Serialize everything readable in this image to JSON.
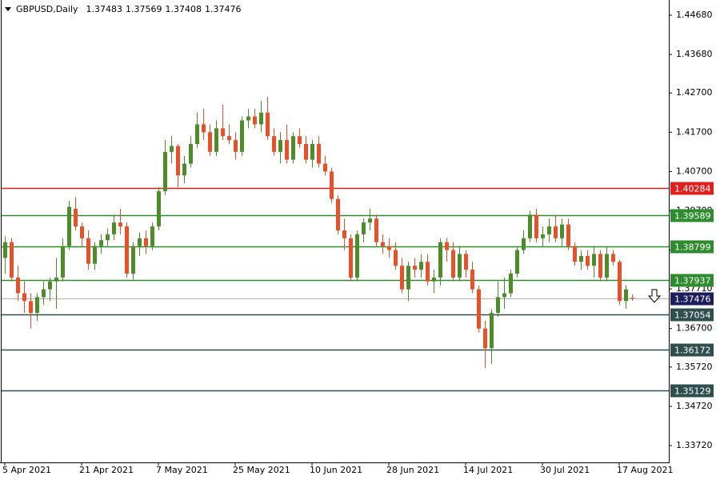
{
  "chart_data": {
    "type": "candlestick",
    "symbol": "GBPUSD,Daily",
    "up_color": "#4e8c2a",
    "down_color": "#e8502a",
    "current_line_color": "#b0b0b0",
    "current_box_color": "#1c1f5c",
    "ylim": [
      1.33292,
      1.45067
    ],
    "yticks": [
      {
        "value": 1.4468,
        "label": "1.44680"
      },
      {
        "value": 1.4368,
        "label": "1.43680"
      },
      {
        "value": 1.427,
        "label": "1.42700"
      },
      {
        "value": 1.417,
        "label": "1.41700"
      },
      {
        "value": 1.407,
        "label": "1.40700"
      },
      {
        "value": 1.397,
        "label": "1.39700"
      },
      {
        "value": 1.387,
        "label": "1.38700"
      },
      {
        "value": 1.3771,
        "label": "1.37710"
      },
      {
        "value": 1.367,
        "label": "1.36700"
      },
      {
        "value": 1.3572,
        "label": "1.35720"
      },
      {
        "value": 1.3472,
        "label": "1.34720"
      },
      {
        "value": 1.3372,
        "label": "1.33720"
      }
    ],
    "levels": [
      {
        "value": 1.40284,
        "color": "#e0201c"
      },
      {
        "value": 1.39589,
        "color": "#2e8b2e"
      },
      {
        "value": 1.38799,
        "color": "#2e8b2e"
      },
      {
        "value": 1.37937,
        "color": "#2e8b2e"
      },
      {
        "value": 1.37054,
        "color": "#2f4f4f"
      },
      {
        "value": 1.36172,
        "color": "#2f4f4f"
      },
      {
        "value": 1.35129,
        "color": "#2f4f4f"
      }
    ],
    "categories": [
      "5 Apr 2021",
      null,
      null,
      null,
      null,
      null,
      null,
      null,
      null,
      null,
      null,
      null,
      "21 Apr 2021",
      null,
      null,
      null,
      null,
      null,
      null,
      null,
      null,
      null,
      null,
      null,
      "7 May 2021",
      null,
      null,
      null,
      null,
      null,
      null,
      null,
      null,
      null,
      null,
      null,
      "25 May 2021",
      null,
      null,
      null,
      null,
      null,
      null,
      null,
      null,
      null,
      null,
      null,
      "10 Jun 2021",
      null,
      null,
      null,
      null,
      null,
      null,
      null,
      null,
      null,
      null,
      null,
      "28 Jun 2021",
      null,
      null,
      null,
      null,
      null,
      null,
      null,
      null,
      null,
      null,
      null,
      "14 Jul 2021",
      null,
      null,
      null,
      null,
      null,
      null,
      null,
      null,
      null,
      null,
      null,
      "30 Jul 2021",
      null,
      null,
      null,
      null,
      null,
      null,
      null,
      null,
      null,
      null,
      null,
      "17 Aug 2021",
      null,
      null
    ],
    "candles": [
      [
        1.385,
        1.3905,
        1.381,
        1.389
      ],
      [
        1.389,
        1.39,
        1.379,
        1.38
      ],
      [
        1.38,
        1.383,
        1.374,
        1.376
      ],
      [
        1.376,
        1.379,
        1.371,
        1.374
      ],
      [
        1.374,
        1.376,
        1.367,
        1.371
      ],
      [
        1.371,
        1.376,
        1.369,
        1.375
      ],
      [
        1.375,
        1.379,
        1.373,
        1.377
      ],
      [
        1.377,
        1.38,
        1.374,
        1.379
      ],
      [
        1.379,
        1.385,
        1.372,
        1.38
      ],
      [
        1.38,
        1.39,
        1.379,
        1.388
      ],
      [
        1.388,
        1.3995,
        1.387,
        1.398
      ],
      [
        1.3975,
        1.4005,
        1.392,
        1.393
      ],
      [
        1.393,
        1.394,
        1.388,
        1.39
      ],
      [
        1.39,
        1.392,
        1.382,
        1.3835
      ],
      [
        1.3835,
        1.389,
        1.382,
        1.388
      ],
      [
        1.388,
        1.391,
        1.386,
        1.3895
      ],
      [
        1.3895,
        1.3925,
        1.388,
        1.391
      ],
      [
        1.391,
        1.396,
        1.3895,
        1.394
      ],
      [
        1.394,
        1.3975,
        1.391,
        1.393
      ],
      [
        1.393,
        1.394,
        1.38,
        1.381
      ],
      [
        1.381,
        1.389,
        1.3795,
        1.388
      ],
      [
        1.388,
        1.3915,
        1.3855,
        1.39
      ],
      [
        1.39,
        1.392,
        1.386,
        1.388
      ],
      [
        1.388,
        1.394,
        1.387,
        1.393
      ],
      [
        1.393,
        1.403,
        1.392,
        1.402
      ],
      [
        1.402,
        1.415,
        1.401,
        1.412
      ],
      [
        1.412,
        1.416,
        1.409,
        1.4135
      ],
      [
        1.4135,
        1.414,
        1.403,
        1.406
      ],
      [
        1.406,
        1.411,
        1.404,
        1.409
      ],
      [
        1.409,
        1.416,
        1.408,
        1.414
      ],
      [
        1.414,
        1.422,
        1.413,
        1.419
      ],
      [
        1.419,
        1.423,
        1.415,
        1.417
      ],
      [
        1.417,
        1.419,
        1.411,
        1.412
      ],
      [
        1.412,
        1.42,
        1.411,
        1.418
      ],
      [
        1.418,
        1.424,
        1.415,
        1.416
      ],
      [
        1.416,
        1.419,
        1.414,
        1.415
      ],
      [
        1.415,
        1.417,
        1.41,
        1.412
      ],
      [
        1.412,
        1.421,
        1.411,
        1.42
      ],
      [
        1.42,
        1.423,
        1.418,
        1.421
      ],
      [
        1.421,
        1.423,
        1.418,
        1.419
      ],
      [
        1.419,
        1.425,
        1.417,
        1.422
      ],
      [
        1.422,
        1.426,
        1.415,
        1.416
      ],
      [
        1.416,
        1.418,
        1.411,
        1.412
      ],
      [
        1.412,
        1.417,
        1.409,
        1.415
      ],
      [
        1.415,
        1.419,
        1.409,
        1.41
      ],
      [
        1.41,
        1.417,
        1.409,
        1.416
      ],
      [
        1.416,
        1.418,
        1.413,
        1.414
      ],
      [
        1.414,
        1.416,
        1.409,
        1.41
      ],
      [
        1.41,
        1.415,
        1.408,
        1.414
      ],
      [
        1.414,
        1.416,
        1.408,
        1.409
      ],
      [
        1.409,
        1.411,
        1.406,
        1.407
      ],
      [
        1.407,
        1.408,
        1.399,
        1.4
      ],
      [
        1.4,
        1.401,
        1.391,
        1.392
      ],
      [
        1.392,
        1.395,
        1.387,
        1.39
      ],
      [
        1.39,
        1.391,
        1.379,
        1.38
      ],
      [
        1.38,
        1.392,
        1.379,
        1.391
      ],
      [
        1.391,
        1.395,
        1.389,
        1.394
      ],
      [
        1.394,
        1.3975,
        1.392,
        1.395
      ],
      [
        1.395,
        1.396,
        1.388,
        1.389
      ],
      [
        1.389,
        1.391,
        1.386,
        1.388
      ],
      [
        1.388,
        1.39,
        1.385,
        1.387
      ],
      [
        1.387,
        1.389,
        1.382,
        1.383
      ],
      [
        1.383,
        1.385,
        1.376,
        1.377
      ],
      [
        1.377,
        1.384,
        1.374,
        1.383
      ],
      [
        1.383,
        1.385,
        1.38,
        1.382
      ],
      [
        1.382,
        1.386,
        1.38,
        1.384
      ],
      [
        1.384,
        1.386,
        1.378,
        1.379
      ],
      [
        1.379,
        1.382,
        1.376,
        1.38
      ],
      [
        1.38,
        1.39,
        1.378,
        1.389
      ],
      [
        1.389,
        1.39,
        1.384,
        1.387
      ],
      [
        1.387,
        1.389,
        1.379,
        1.38
      ],
      [
        1.38,
        1.388,
        1.379,
        1.386
      ],
      [
        1.386,
        1.387,
        1.38,
        1.382
      ],
      [
        1.382,
        1.384,
        1.376,
        1.377
      ],
      [
        1.377,
        1.378,
        1.366,
        1.367
      ],
      [
        1.367,
        1.369,
        1.357,
        1.362
      ],
      [
        1.362,
        1.372,
        1.358,
        1.371
      ],
      [
        1.371,
        1.379,
        1.37,
        1.375
      ],
      [
        1.375,
        1.38,
        1.372,
        1.376
      ],
      [
        1.376,
        1.382,
        1.375,
        1.381
      ],
      [
        1.381,
        1.388,
        1.38,
        1.387
      ],
      [
        1.387,
        1.392,
        1.386,
        1.39
      ],
      [
        1.39,
        1.397,
        1.389,
        1.396
      ],
      [
        1.396,
        1.3975,
        1.389,
        1.39
      ],
      [
        1.39,
        1.393,
        1.388,
        1.391
      ],
      [
        1.391,
        1.395,
        1.389,
        1.393
      ],
      [
        1.393,
        1.396,
        1.389,
        1.39
      ],
      [
        1.39,
        1.395,
        1.388,
        1.3935
      ],
      [
        1.3935,
        1.395,
        1.387,
        1.388
      ],
      [
        1.388,
        1.389,
        1.383,
        1.384
      ],
      [
        1.384,
        1.387,
        1.382,
        1.3855
      ],
      [
        1.3855,
        1.387,
        1.382,
        1.383
      ],
      [
        1.383,
        1.388,
        1.38,
        1.386
      ],
      [
        1.386,
        1.387,
        1.379,
        1.38
      ],
      [
        1.38,
        1.388,
        1.379,
        1.386
      ],
      [
        1.386,
        1.387,
        1.383,
        1.384
      ],
      [
        1.384,
        1.3845,
        1.373,
        1.374
      ],
      [
        1.374,
        1.378,
        1.372,
        1.377
      ],
      [
        1.37483,
        1.37569,
        1.37408,
        1.37476
      ]
    ]
  }
}
